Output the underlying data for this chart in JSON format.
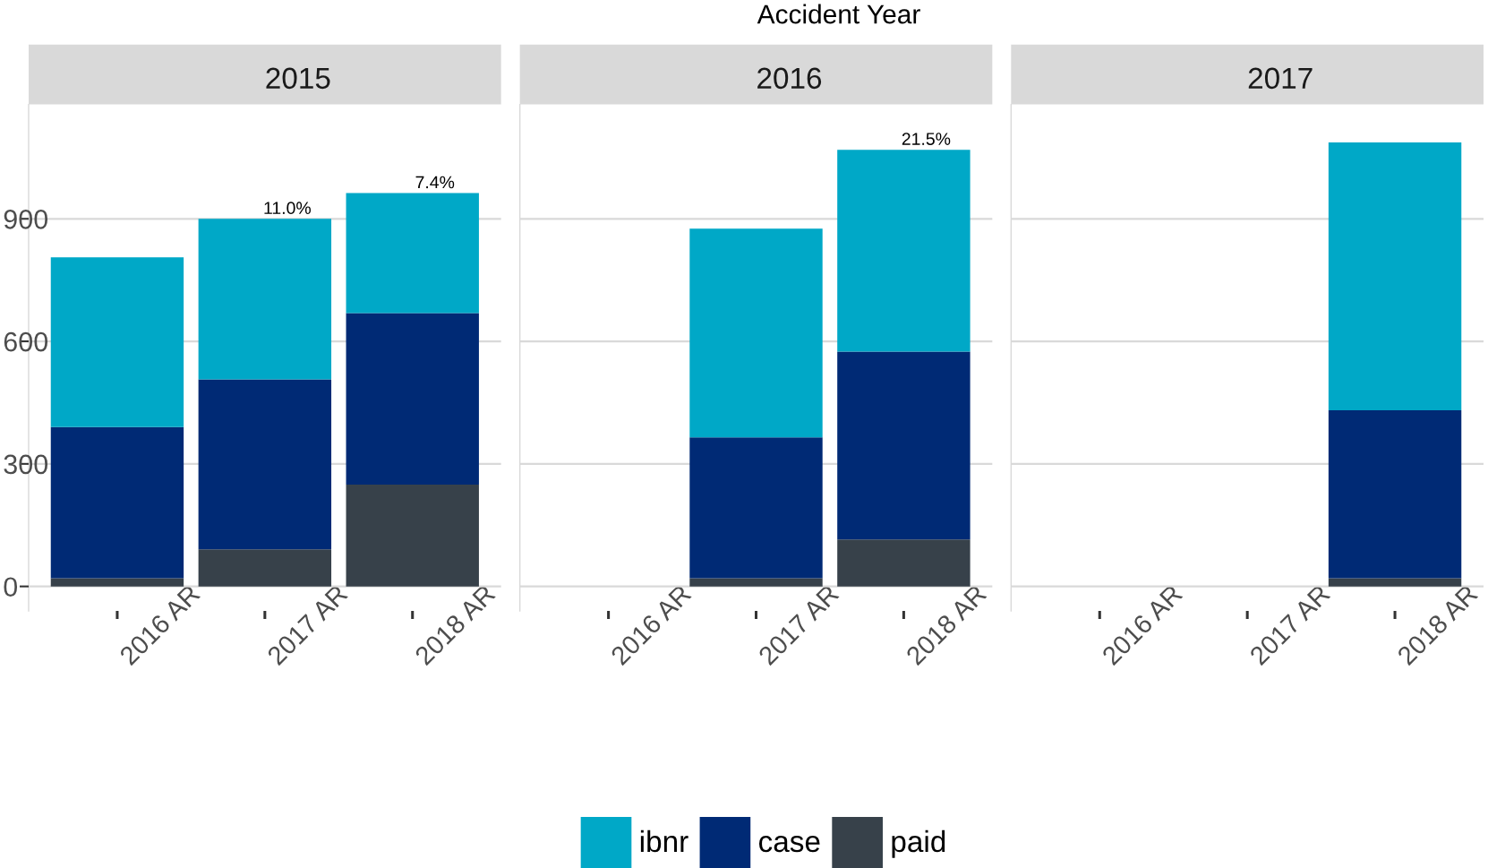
{
  "chart_data": [
    {
      "type": "bar",
      "title": "2015",
      "categories": [
        "2016 AR",
        "2017 AR",
        "2018 AR"
      ],
      "stacked": true,
      "series": [
        {
          "color": "#37414a",
          "values": [
            20,
            91,
            249
          ]
        },
        {
          "color": "#002a75",
          "values": [
            370,
            416,
            420
          ]
        },
        {
          "color": "#00a8c7",
          "values": [
            416,
            393,
            294
          ]
        }
      ],
      "ylim": [
        -60,
        1180
      ],
      "yticks": [
        0,
        300,
        600,
        900
      ],
      "grid": "y",
      "annotations": [
        {
          "text": "11.0%",
          "x": "2017 AR",
          "y": 900
        },
        {
          "text": "7.4%",
          "x": "2018 AR",
          "y": 963
        }
      ]
    },
    {
      "type": "bar",
      "title": "2016",
      "categories": [
        "2016 AR",
        "2017 AR",
        "2018 AR"
      ],
      "stacked": true,
      "series": [
        {
          "name": "paid",
          "color": "#37414a",
          "values": [
            null,
            20,
            115
          ]
        },
        {
          "name": "case",
          "color": "#002a75",
          "values": [
            null,
            345,
            460
          ]
        },
        {
          "name": "ibnr",
          "color": "#00a8c7",
          "values": [
            null,
            511,
            494
          ]
        }
      ],
      "ylim": [
        -60,
        1180
      ],
      "yticks": [
        0,
        300,
        600,
        900
      ],
      "grid": "y",
      "tick_labels": "x",
      "legend": "bottom",
      "annotations": [
        "Accident Year",
        {
          "text": "21.5%",
          "x": "2018 AR",
          "y": 1069
        }
      ]
    },
    {
      "type": "bar",
      "title": "2017",
      "categories": [
        "2016 AR",
        "2017 AR",
        "2018 AR"
      ],
      "stacked": true,
      "series": [
        {
          "color": "#37414a",
          "values": [
            null,
            null,
            20
          ]
        },
        {
          "color": "#002a75",
          "values": [
            null,
            null,
            411
          ]
        },
        {
          "color": "#00a8c7",
          "values": [
            null,
            null,
            656
          ]
        }
      ],
      "ylim": [
        -60,
        1180
      ],
      "yticks": [
        0,
        300,
        600,
        900
      ],
      "grid": "y",
      "tick_labels": "x"
    }
  ]
}
